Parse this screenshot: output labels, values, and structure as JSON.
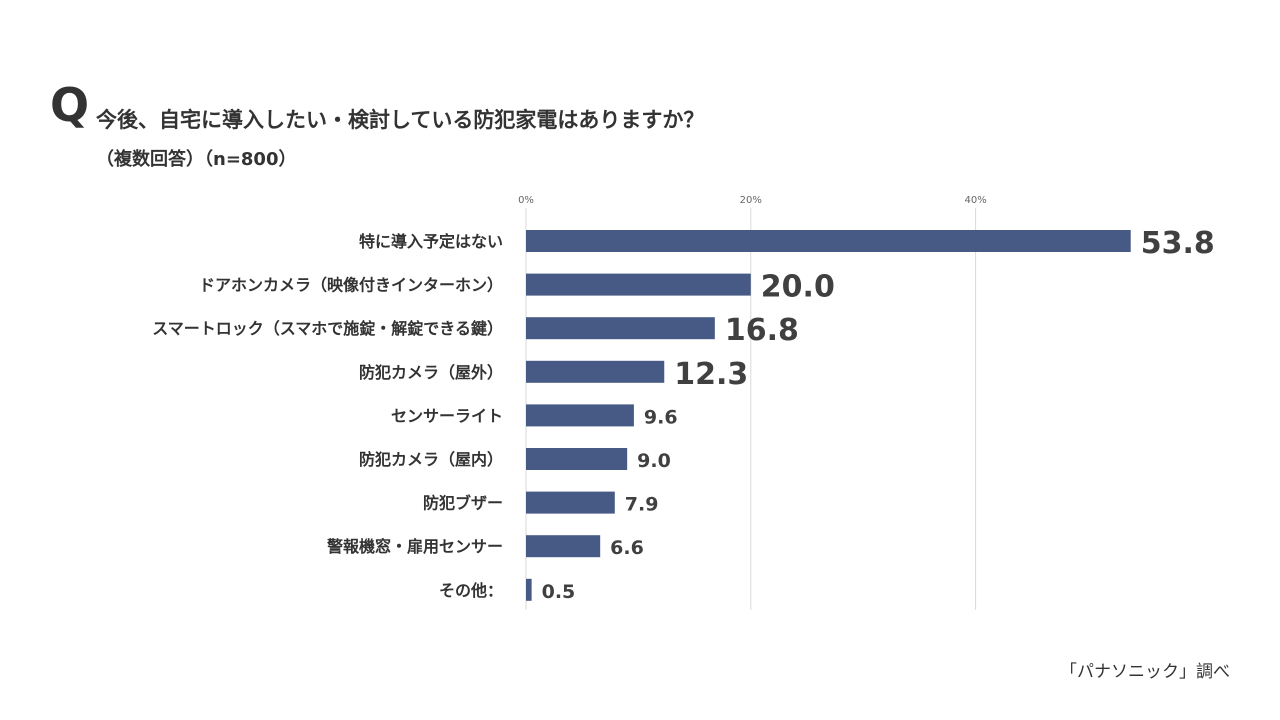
{
  "header": {
    "q_mark": "Q",
    "question": "今後、自宅に導入したい・検討している防犯家電はありますか？",
    "subtitle": "（複数回答）（n=800）"
  },
  "source": "「パナソニック」調べ",
  "colors": {
    "bar": "#475a85",
    "grid": "#d9d9d9",
    "text": "#333333"
  },
  "chart_data": {
    "type": "bar",
    "orientation": "horizontal",
    "title": "今後、自宅に導入したい・検討している防犯家電はありますか？",
    "categories": [
      "特に導入予定はない",
      "ドアホンカメラ（映像付きインターホン）",
      "スマートロック（スマホで施錠・解錠できる鍵）",
      "防犯カメラ（屋外）",
      "センサーライト",
      "防犯カメラ（屋内）",
      "防犯ブザー",
      "警報機窓・扉用センサー",
      "その他："
    ],
    "values": [
      53.8,
      20.0,
      16.8,
      12.3,
      9.6,
      9.0,
      7.9,
      6.6,
      0.5
    ],
    "value_labels": [
      "53.8",
      "20.0",
      "16.8",
      "12.3",
      "9.6",
      "9.0",
      "7.9",
      "6.6",
      "0.5"
    ],
    "highlight_top": 4,
    "xticks": [
      0,
      20,
      40
    ],
    "xtick_labels": [
      "0%",
      "20%",
      "40%"
    ],
    "xlim": [
      0,
      60
    ],
    "grid": true,
    "legend": "none"
  }
}
